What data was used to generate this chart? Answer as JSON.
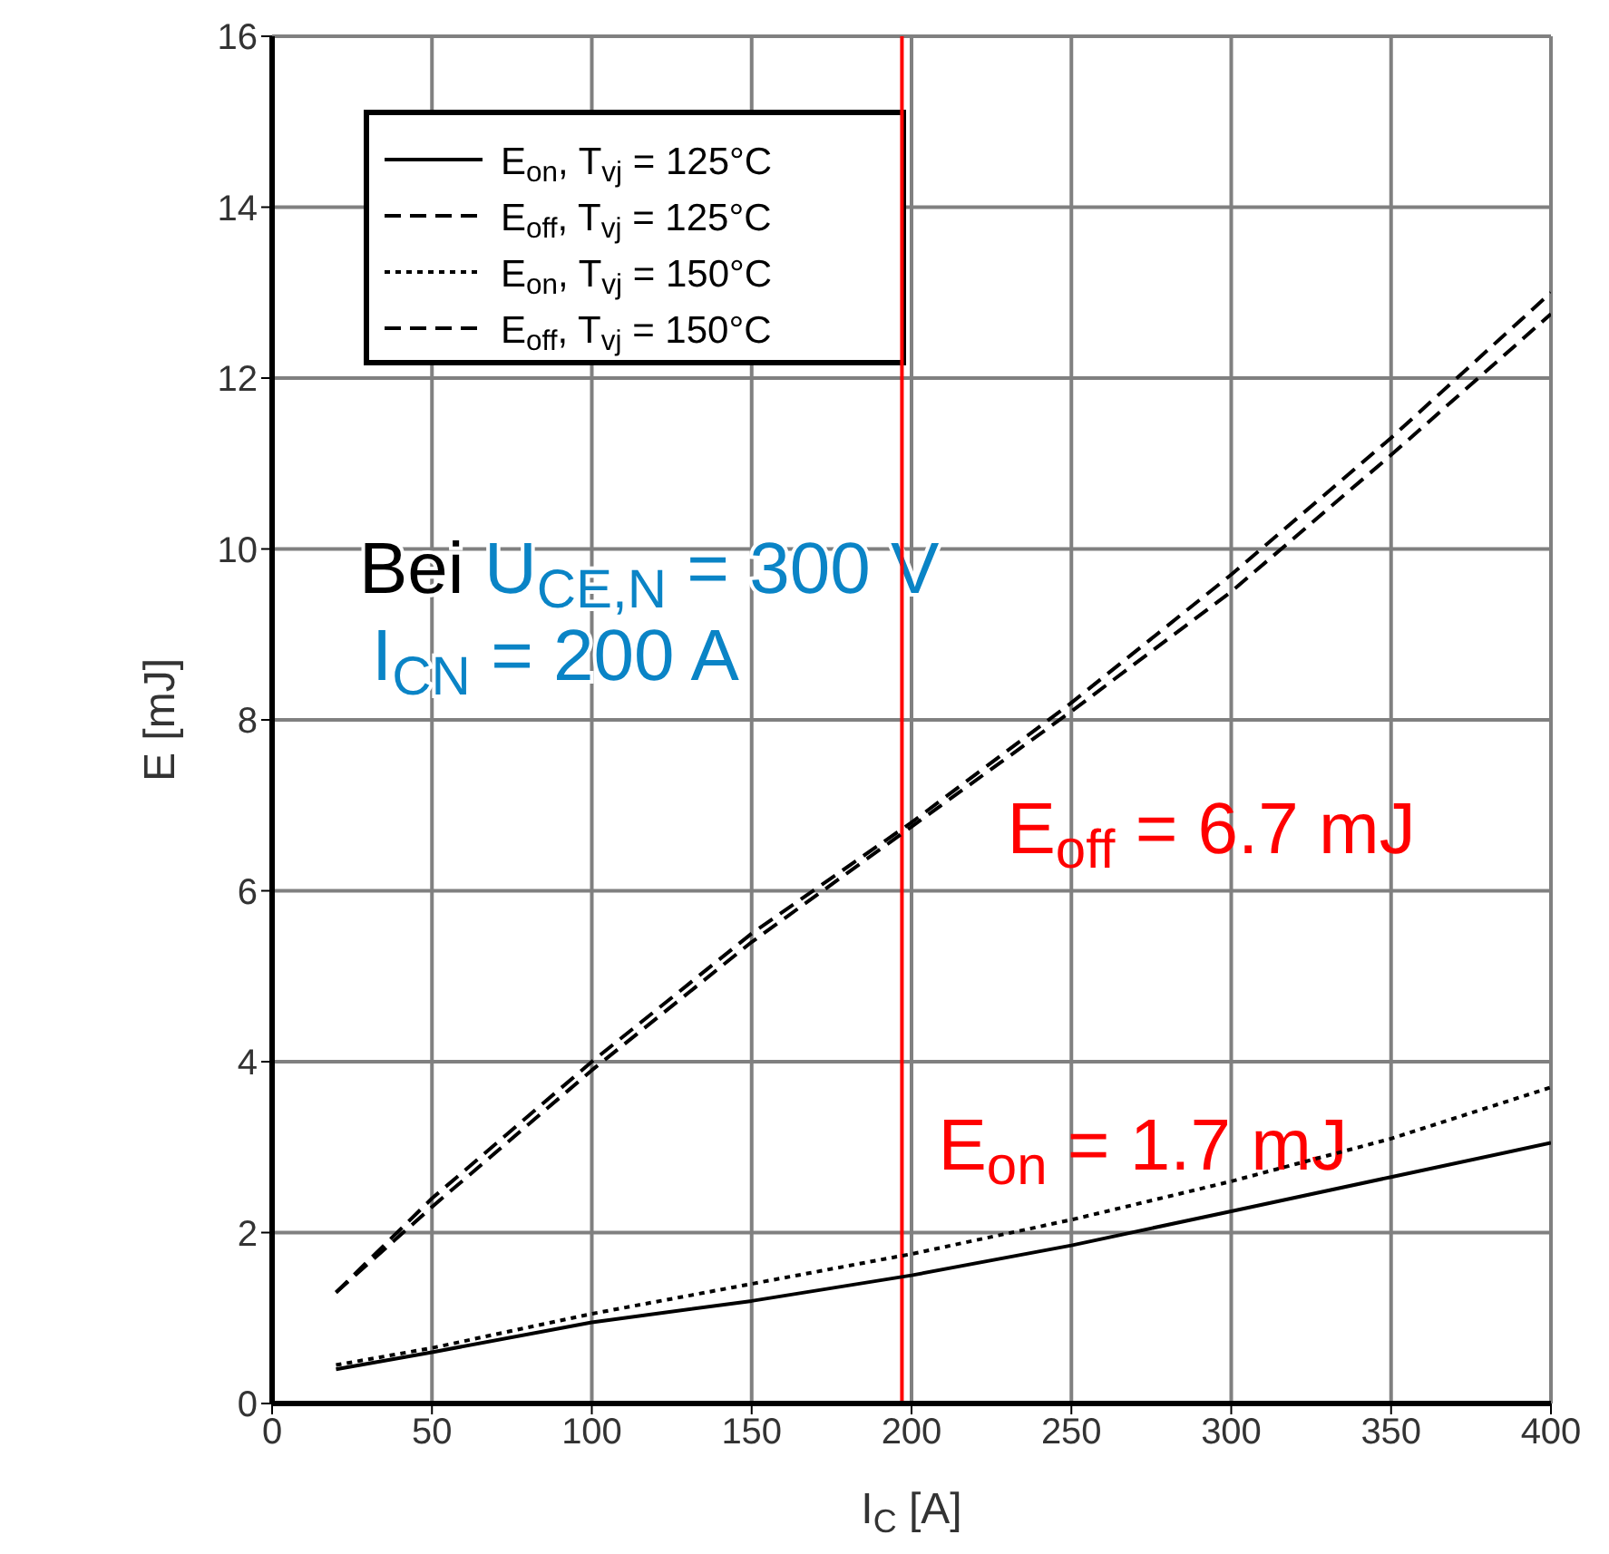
{
  "chart_data": {
    "type": "line",
    "xlabel": "I$_{C}$ [A]",
    "ylabel": "E [mJ]",
    "x": [
      20,
      50,
      100,
      150,
      200,
      250,
      300,
      350,
      400
    ],
    "series": [
      {
        "name": "E$_{on}$, T$_{vj}$ = 125°C",
        "color": "#000000",
        "line_style": "solid",
        "values": [
          0.4,
          0.6,
          0.95,
          1.2,
          1.5,
          1.85,
          2.25,
          2.65,
          3.05
        ]
      },
      {
        "name": "E$_{off}$, T$_{vj}$ = 125°C",
        "color": "#000000",
        "line_style": "dashed",
        "values": [
          1.3,
          2.3,
          3.9,
          5.4,
          6.75,
          8.1,
          9.5,
          11.1,
          12.75
        ]
      },
      {
        "name": "E$_{on}$, T$_{vj}$ = 150°C",
        "color": "#000000",
        "line_style": "dotted",
        "values": [
          0.45,
          0.65,
          1.05,
          1.4,
          1.75,
          2.15,
          2.6,
          3.1,
          3.7
        ]
      },
      {
        "name": "E$_{off}$, T$_{vj}$ = 150°C",
        "color": "#000000",
        "line_style": "dashed",
        "values": [
          1.3,
          2.4,
          4.0,
          5.5,
          6.8,
          8.2,
          9.7,
          11.3,
          13.0
        ]
      }
    ],
    "xlim": [
      0,
      400
    ],
    "xticks": [
      0,
      50,
      100,
      150,
      200,
      250,
      300,
      350,
      400
    ],
    "ylim": [
      0,
      16
    ],
    "yticks": [
      0,
      2,
      4,
      6,
      8,
      10,
      12,
      14,
      16
    ],
    "grid": true,
    "legend": "top left",
    "marker": "none",
    "ref_lines": [
      {
        "axis": "x",
        "value": 197,
        "color": "#ff0000"
      }
    ],
    "annotations": [
      "Bei U$_{CE,N}$ = 300 V",
      "I$_{CN}$ = 200 A",
      {
        "text": "E$_{off}$ = 6.7 mJ",
        "x": 197,
        "y": 6.7
      },
      {
        "text": "E$_{on}$ = 1.7 mJ",
        "x": 197,
        "y": 1.7
      }
    ]
  }
}
